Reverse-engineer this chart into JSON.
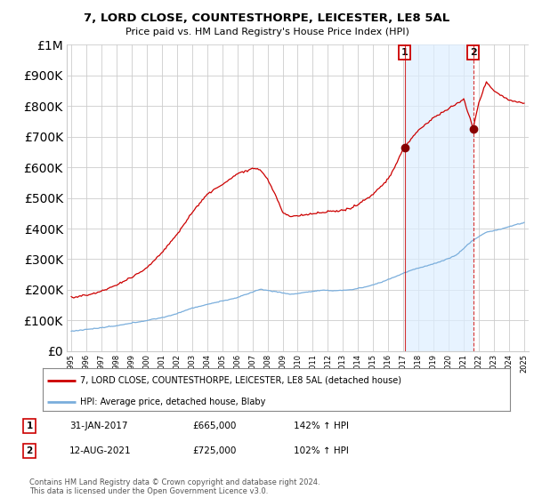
{
  "title": "7, LORD CLOSE, COUNTESTHORPE, LEICESTER, LE8 5AL",
  "subtitle": "Price paid vs. HM Land Registry's House Price Index (HPI)",
  "legend_line1": "7, LORD CLOSE, COUNTESTHORPE, LEICESTER, LE8 5AL (detached house)",
  "legend_line2": "HPI: Average price, detached house, Blaby",
  "sale1_label": "1",
  "sale1_date": "31-JAN-2017",
  "sale1_price": "£665,000",
  "sale1_hpi": "142% ↑ HPI",
  "sale2_label": "2",
  "sale2_date": "12-AUG-2021",
  "sale2_price": "£725,000",
  "sale2_hpi": "102% ↑ HPI",
  "footnote": "Contains HM Land Registry data © Crown copyright and database right 2024.\nThis data is licensed under the Open Government Licence v3.0.",
  "red_color": "#cc0000",
  "blue_color": "#7aaedc",
  "shade_color": "#ddeeff",
  "sale1_year": 2017.08,
  "sale2_year": 2021.62,
  "sale1_price_val": 665000,
  "sale2_price_val": 725000,
  "ylim_max": 1000000,
  "xlim_min": 1994.7,
  "xlim_max": 2025.3
}
